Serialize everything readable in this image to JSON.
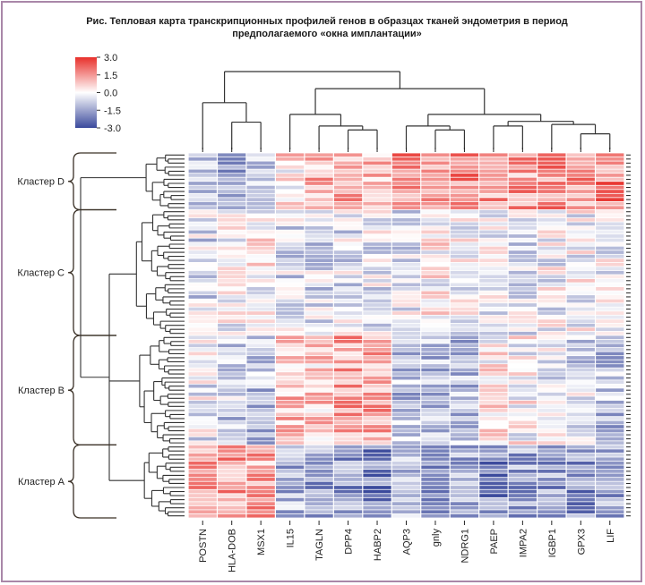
{
  "title_line1": "Рис. Тепловая карта транскрипционных профилей генов в образцах тканей эндометрия в период",
  "title_line2": "предполагаемого «окна имплантации»",
  "chart_data": {
    "type": "heatmap",
    "title": "Рис. Тепловая карта транскрипционных профилей генов в образцах тканей эндометрия в период предполагаемого «окна имплантации»",
    "xlabel": "",
    "ylabel": "",
    "colorscale": {
      "min": -3.0,
      "max": 3.0,
      "low_color": "#3b4a9c",
      "mid_color": "#ffffff",
      "high_color": "#e8302b",
      "ticks": [
        "3.0",
        "1.5",
        "0.0",
        "-1.5",
        "-3.0"
      ],
      "tick_values": [
        3.0,
        1.5,
        0.0,
        -1.5,
        -3.0
      ]
    },
    "columns": [
      "POSTN",
      "HLA-DOB",
      "MSX1",
      "IL15",
      "TAGLN",
      "DPP4",
      "HABP2",
      "AQP3",
      "gnly",
      "NDRG1",
      "PAEP",
      "IMPA2",
      "IGBP1",
      "GPX3",
      "LIF"
    ],
    "column_dendrogram": {
      "merges": [
        {
          "left": "HLA-DOB",
          "right": "MSX1",
          "height": 0.35
        },
        {
          "left": "POSTN",
          "right": "HLA-DOB+MSX1",
          "height": 0.6
        },
        {
          "left": "DPP4",
          "right": "HABP2",
          "height": 0.25
        },
        {
          "left": "TAGLN",
          "right": "DPP4+HABP2",
          "height": 0.3
        },
        {
          "left": "IL15",
          "right": "TAGLN+DPP4+HABP2",
          "height": 0.45
        },
        {
          "left": "gnly",
          "right": "NDRG1",
          "height": 0.25
        },
        {
          "left": "AQP3",
          "right": "gnly+NDRG1",
          "height": 0.3
        },
        {
          "left": "PAEP",
          "right": "IMPA2",
          "height": 0.3
        },
        {
          "left": "GPX3",
          "right": "LIF",
          "height": 0.2
        },
        {
          "left": "IGBP1",
          "right": "GPX3+LIF",
          "height": 0.32
        },
        {
          "left": "PAEP+IMPA2",
          "right": "IGBP1+GPX3+LIF",
          "height": 0.36
        },
        {
          "left": "AQP3+gnly+NDRG1",
          "right": "PAEP..LIF",
          "height": 0.45
        },
        {
          "left": "IL15..HABP2",
          "right": "AQP3..LIF",
          "height": 0.78
        },
        {
          "left": "POSTN..MSX1",
          "right": "IL15..LIF",
          "height": 1.0
        }
      ]
    },
    "row_clusters": [
      {
        "name": "Кластер D",
        "rows": 14
      },
      {
        "name": "Кластер C",
        "rows": 31
      },
      {
        "name": "Кластер B",
        "rows": 27
      },
      {
        "name": "Кластер A",
        "rows": 18
      }
    ],
    "cluster_means": {
      "Кластер D": [
        -1.0,
        -1.5,
        -0.8,
        0.4,
        1.0,
        1.2,
        0.8,
        1.8,
        1.2,
        1.8,
        1.3,
        1.4,
        1.6,
        1.5,
        1.8
      ],
      "Кластер C": [
        -0.6,
        -0.1,
        0.1,
        -0.5,
        -0.6,
        -0.5,
        -0.4,
        -0.4,
        0.1,
        -0.2,
        -0.1,
        -0.5,
        -0.2,
        -0.1,
        -0.2
      ],
      "Кластер B": [
        -0.3,
        -0.8,
        -1.0,
        1.0,
        0.8,
        1.3,
        1.2,
        -1.0,
        -1.0,
        -1.0,
        0.3,
        0.0,
        -0.3,
        -0.6,
        -1.0
      ],
      "Кластер A": [
        1.5,
        1.5,
        1.2,
        -1.2,
        -1.5,
        -1.7,
        -2.0,
        -1.3,
        -1.4,
        -1.3,
        -2.0,
        -1.5,
        -1.6,
        -1.8,
        -1.6
      ]
    },
    "grid": false,
    "legend": "top-left"
  }
}
